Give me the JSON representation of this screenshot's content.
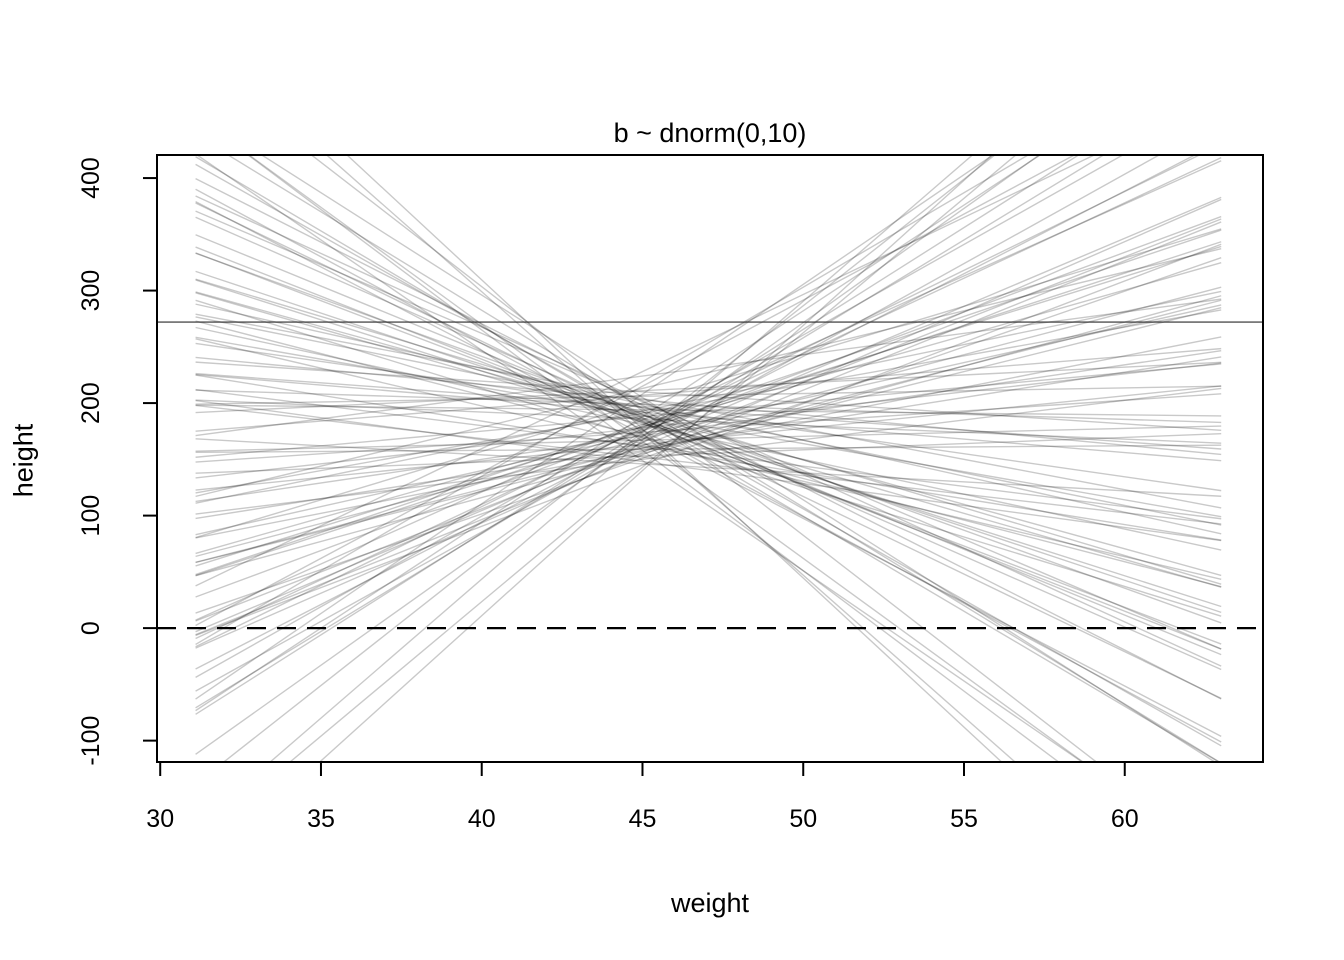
{
  "chart_data": {
    "type": "line",
    "title": "b ~ dnorm(0,10)",
    "xlabel": "weight",
    "ylabel": "height",
    "xlim": [
      29.9,
      64.3
    ],
    "ylim": [
      -119,
      420.5
    ],
    "x_ticks": [
      30,
      35,
      40,
      45,
      50,
      55,
      60
    ],
    "y_ticks": [
      -100,
      0,
      100,
      200,
      300,
      400
    ],
    "grid": false,
    "legend": null,
    "colors": {
      "axis": "#000000",
      "prior_line": "#000000",
      "prior_line_alpha": 0.21,
      "solid_ref_line": "#2a2a2a",
      "dashed_ref_line": "#000000"
    },
    "reference_lines": [
      {
        "axis": "y",
        "value": 272,
        "style": "solid"
      },
      {
        "axis": "y",
        "value": 0,
        "style": "dashed"
      }
    ],
    "prior_lines": {
      "n_lines": 100,
      "x_start": 31.1,
      "x_end": 63.0,
      "xbar": 45,
      "a": [
        178,
        192,
        165,
        203,
        171,
        186,
        158,
        199,
        176,
        149,
        211,
        181,
        168,
        190,
        155,
        174,
        196,
        162,
        184,
        207,
        170,
        188,
        146,
        179,
        201,
        160,
        193,
        175,
        152,
        215,
        183,
        167,
        198,
        172,
        140,
        189,
        177,
        205,
        163,
        187,
        157,
        194,
        180,
        169,
        224,
        173,
        151,
        197,
        185,
        164,
        208,
        176,
        191,
        159,
        182,
        200,
        148,
        178,
        166,
        213,
        186,
        154,
        195,
        171,
        189,
        143,
        202,
        174,
        181,
        161,
        219,
        177,
        168,
        192,
        156,
        185,
        206,
        170,
        196,
        150,
        183,
        165,
        210,
        179,
        158,
        193,
        172,
        188,
        145,
        199,
        175,
        162,
        228,
        184,
        153,
        190,
        167,
        204,
        160,
        187
      ],
      "b": [
        3.2,
        -8.5,
        12.1,
        -2.7,
        17.4,
        -13.8,
        5.6,
        -0.9,
        9.3,
        -19.6,
        1.4,
        -6.2,
        14.7,
        -10.3,
        7.8,
        22.5,
        -4.1,
        11.2,
        -16.9,
        2.3,
        -7.4,
        18.8,
        -1.6,
        8.1,
        -12.2,
        4.5,
        -22.1,
        10.6,
        -3.3,
        15.3,
        -9.1,
        0.7,
        -14.5,
        6.4,
        25.8,
        -5.0,
        13.4,
        -18.2,
        2.9,
        -11.7,
        7.1,
        -0.3,
        16.1,
        -8.8,
        3.8,
        -25.2,
        9.9,
        -2.1,
        12.8,
        -6.7,
        19.5,
        -15.4,
        5.1,
        0.2,
        -10.9,
        8.6,
        -3.9,
        14.0,
        -20.8,
        6.9,
        -1.2,
        11.5,
        -17.5,
        4.2,
        -7.9,
        23.9,
        -13.1,
        1.9,
        9.6,
        -4.6,
        16.8,
        -26.5,
        7.5,
        -2.4,
        12.5,
        -9.5,
        0.5,
        20.3,
        -5.8,
        3.5,
        -11.2,
        15.9,
        -1.9,
        8.9,
        -21.4,
        5.9,
        -14.9,
        2.6,
        10.9,
        -6.4,
        18.1,
        -3.6,
        13.7,
        -8.2,
        1.1,
        -12.6,
        24.7,
        -5.4,
        7.3,
        -16.2
      ]
    }
  }
}
